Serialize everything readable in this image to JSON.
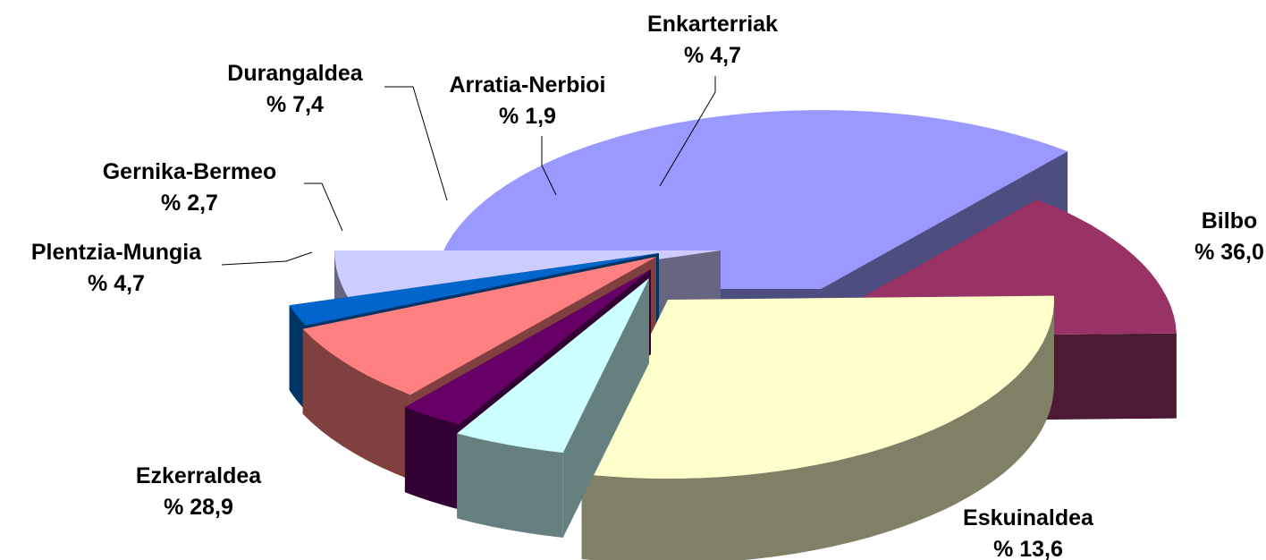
{
  "chart_data": {
    "type": "pie",
    "style": "3d-exploded",
    "title": "",
    "legend": "none",
    "slices": [
      {
        "name": "Bilbo",
        "value_label": "% 36,0",
        "value": 36.0,
        "top_color": "#9999ff",
        "side_color": "#4d4d80"
      },
      {
        "name": "Eskuinaldea",
        "value_label": "% 13,6",
        "value": 13.6,
        "top_color": "#993366",
        "side_color": "#4d1a33"
      },
      {
        "name": "Ezkerraldea",
        "value_label": "% 28,9",
        "value": 28.9,
        "top_color": "#ffffcc",
        "side_color": "#808066"
      },
      {
        "name": "Plentzia-Mungia",
        "value_label": "% 4,7",
        "value": 4.7,
        "top_color": "#ccffff",
        "side_color": "#668080"
      },
      {
        "name": "Gernika-Bermeo",
        "value_label": "% 2,7",
        "value": 2.7,
        "top_color": "#660066",
        "side_color": "#330033"
      },
      {
        "name": "Durangaldea",
        "value_label": "% 7,4",
        "value": 7.4,
        "top_color": "#ff8080",
        "side_color": "#804040"
      },
      {
        "name": "Arratia-Nerbioi",
        "value_label": "% 1,9",
        "value": 1.9,
        "top_color": "#0066cc",
        "side_color": "#003366"
      },
      {
        "name": "Enkarterriak",
        "value_label": "% 4,7",
        "value": 4.7,
        "top_color": "#ccccff",
        "side_color": "#666680"
      }
    ]
  }
}
